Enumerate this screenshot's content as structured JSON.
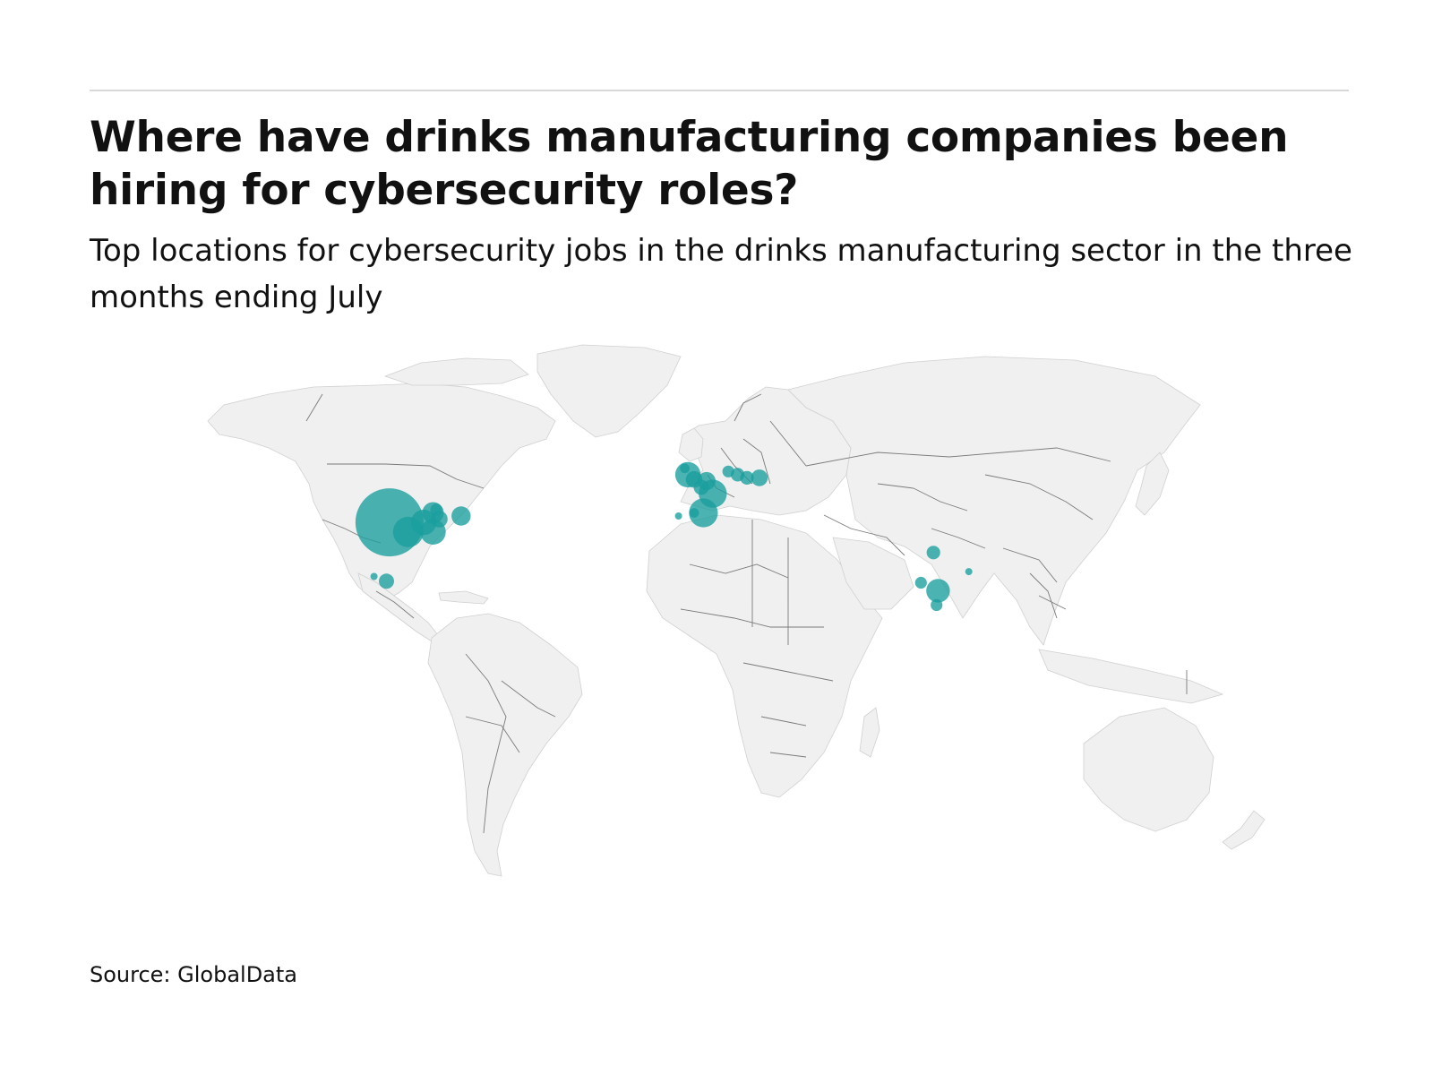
{
  "header": {
    "title": "Where have drinks manufacturing companies been hiring for cybersecurity roles?",
    "subtitle": "Top locations for cybersecurity jobs in the drinks manufacturing sector in the three months ending July"
  },
  "footer": {
    "source": "Source: GlobalData"
  },
  "colors": {
    "bubble": "#1a9e9e",
    "land": "#f0f0f0",
    "border": "#7a7a7a"
  },
  "map_data": {
    "type": "bubble-map",
    "projection": "equirectangular",
    "locations": [
      {
        "lon": -98,
        "lat": 38,
        "value": 100
      },
      {
        "lon": -92,
        "lat": 35,
        "value": 20
      },
      {
        "lon": -87,
        "lat": 38,
        "value": 14
      },
      {
        "lon": -84,
        "lat": 35,
        "value": 14
      },
      {
        "lon": -84,
        "lat": 41,
        "value": 10
      },
      {
        "lon": -82,
        "lat": 39,
        "value": 6
      },
      {
        "lon": -83,
        "lat": 42,
        "value": 3
      },
      {
        "lon": -75,
        "lat": 40,
        "value": 8
      },
      {
        "lon": -103,
        "lat": 21,
        "value": 1
      },
      {
        "lon": -99,
        "lat": 19.5,
        "value": 5
      },
      {
        "lon": -2,
        "lat": 53,
        "value": 14
      },
      {
        "lon": -3,
        "lat": 55,
        "value": 2
      },
      {
        "lon": 0,
        "lat": 51.5,
        "value": 6
      },
      {
        "lon": 4,
        "lat": 51,
        "value": 7
      },
      {
        "lon": 2.3,
        "lat": 49,
        "value": 5
      },
      {
        "lon": 6,
        "lat": 47,
        "value": 17
      },
      {
        "lon": 14,
        "lat": 53,
        "value": 4
      },
      {
        "lon": 17,
        "lat": 52,
        "value": 4
      },
      {
        "lon": 21,
        "lat": 52,
        "value": 6
      },
      {
        "lon": 11,
        "lat": 54,
        "value": 3
      },
      {
        "lon": 3,
        "lat": 41,
        "value": 18
      },
      {
        "lon": 0,
        "lat": 41,
        "value": 2
      },
      {
        "lon": -5,
        "lat": 40,
        "value": 1
      },
      {
        "lon": 77,
        "lat": 28.5,
        "value": 4
      },
      {
        "lon": 73,
        "lat": 19,
        "value": 3
      },
      {
        "lon": 78.5,
        "lat": 16.5,
        "value": 12
      },
      {
        "lon": 78,
        "lat": 12,
        "value": 3
      },
      {
        "lon": 88.4,
        "lat": 22.5,
        "value": 1
      }
    ]
  }
}
